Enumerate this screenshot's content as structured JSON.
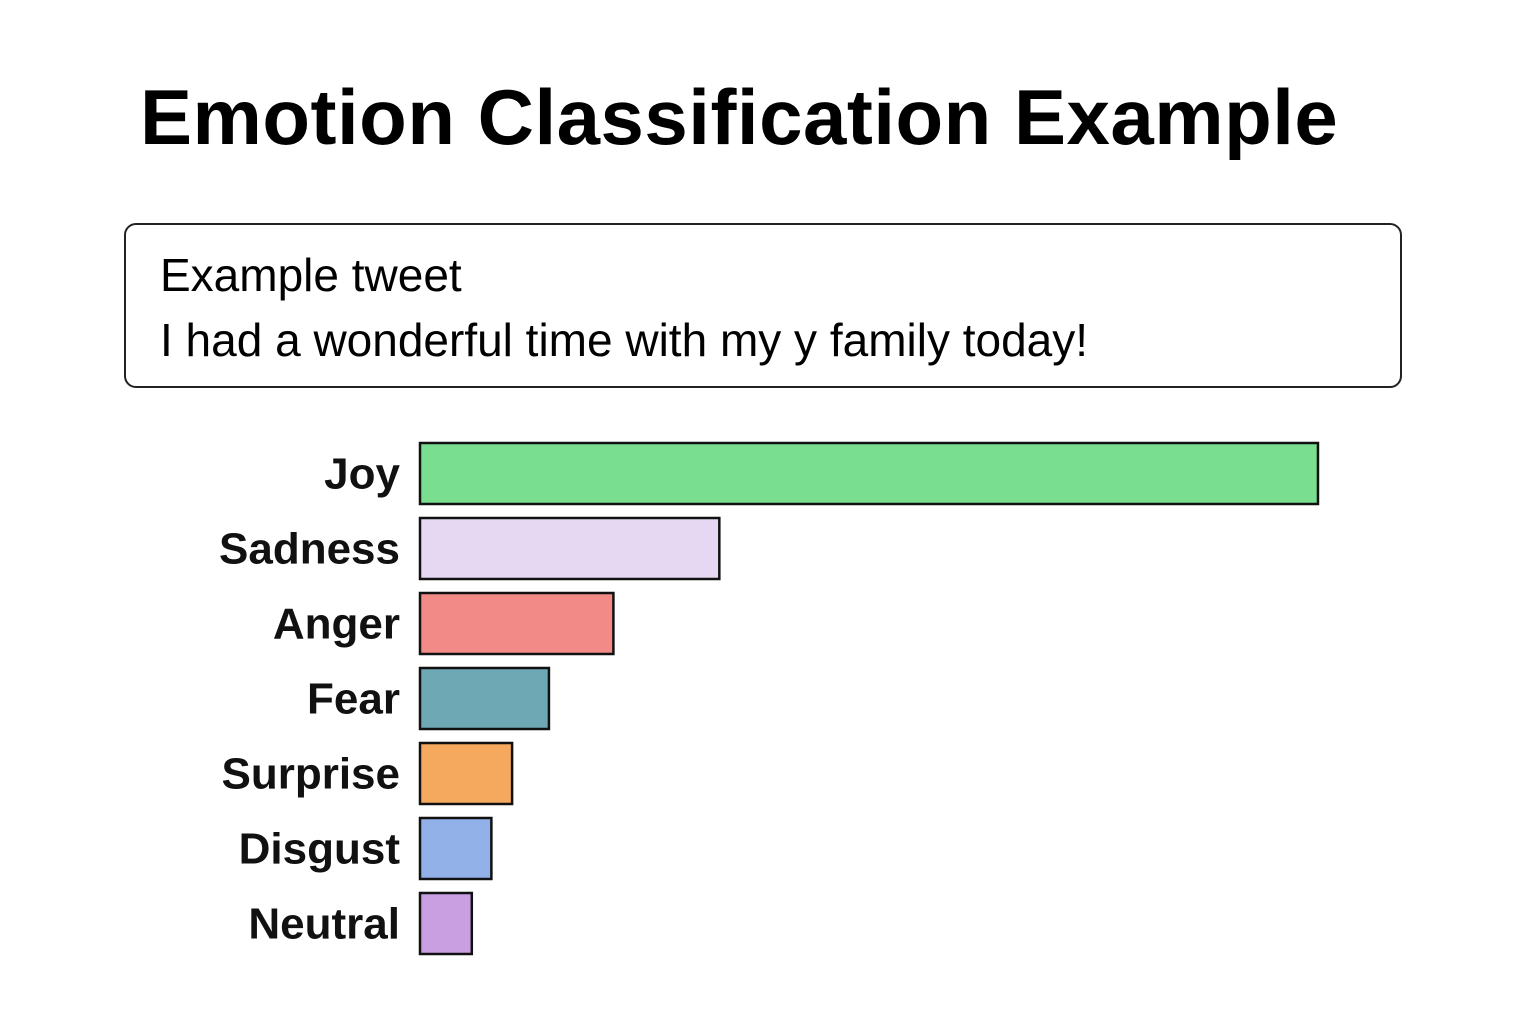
{
  "title": "Emotion Classification Example",
  "tweet": {
    "heading": "Example tweet",
    "text": "I had a wonderful time with my y family today!"
  },
  "chart_data": {
    "type": "bar",
    "orientation": "horizontal",
    "title": "",
    "xlabel": "",
    "ylabel": "",
    "categories": [
      "Joy",
      "Sadness",
      "Anger",
      "Fear",
      "Surprise",
      "Disgust",
      "Neutral"
    ],
    "values": [
      0.78,
      0.26,
      0.168,
      0.112,
      0.08,
      0.062,
      0.045
    ],
    "xlim": [
      0,
      0.8
    ],
    "colors": [
      "#79de90",
      "#e6d8f2",
      "#f28b88",
      "#6ea8b4",
      "#f5a95e",
      "#91b1e8",
      "#c99fe2"
    ],
    "grid": false,
    "legend": "none"
  }
}
